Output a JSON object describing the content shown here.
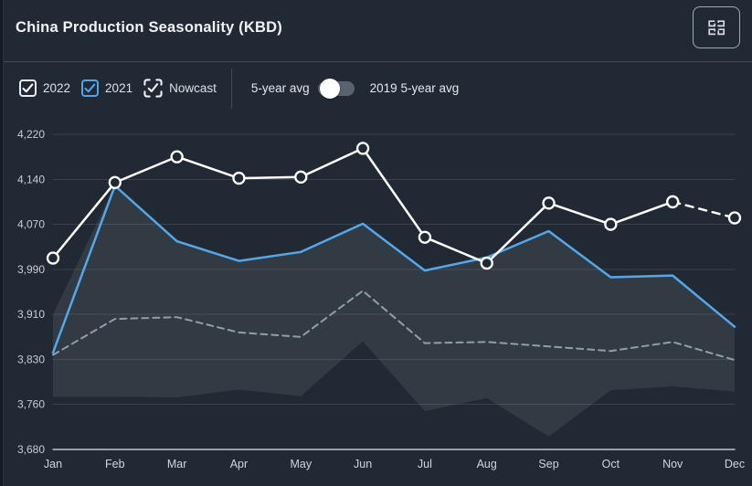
{
  "header": {
    "title": "China Production Seasonality (KBD)",
    "action_icon": "grid-icon"
  },
  "controls": {
    "legend": [
      {
        "label": "2022",
        "checked": true,
        "style": "white"
      },
      {
        "label": "2021",
        "checked": true,
        "style": "blue"
      },
      {
        "label": "Nowcast",
        "checked": true,
        "style": "bracket"
      }
    ],
    "toggle": {
      "left_label": "5-year avg",
      "right_label": "2019 5-year avg",
      "state": "off"
    }
  },
  "colors": {
    "panel": "#212a34",
    "accent_blue": "#55a7ea",
    "line_white": "#ffffff",
    "line_gray_dash": "#939da8",
    "band_fill": "rgba(255,255,255,0.08)",
    "grid_line": "rgba(255,255,255,0.11)",
    "axis_line": "#97a0aa",
    "tick_text": "#c6ccd4",
    "month_text": "#cfd5db"
  },
  "chart_data": {
    "type": "line",
    "title": "China Production Seasonality (KBD)",
    "xlabel": "",
    "ylabel": "",
    "categories": [
      "Jan",
      "Feb",
      "Mar",
      "Apr",
      "May",
      "Jun",
      "Jul",
      "Aug",
      "Sep",
      "Oct",
      "Nov",
      "Dec"
    ],
    "yticks": {
      "values": [
        4220,
        4140,
        4070,
        3990,
        3910,
        3830,
        3760,
        3680
      ],
      "labels": [
        "4,220",
        "4,140",
        "4,070",
        "3,990",
        "3,910",
        "3,830",
        "3,760",
        "3,680"
      ]
    },
    "ylim": [
      3680,
      4220
    ],
    "grid": true,
    "legend_position": "top",
    "series": [
      {
        "name": "2022",
        "color": "#ffffff",
        "dashed": false,
        "markers": true,
        "values": [
          4010,
          4135,
          4180,
          4142,
          4144,
          4195,
          4047,
          4001,
          4103,
          4070,
          4105,
          null
        ]
      },
      {
        "name": "Nowcast",
        "color": "#ffffff",
        "dashed": true,
        "markers": true,
        "values": [
          null,
          null,
          null,
          null,
          null,
          null,
          null,
          null,
          null,
          null,
          4105,
          4080
        ]
      },
      {
        "name": "2021",
        "color": "#55a7ea",
        "dashed": false,
        "markers": false,
        "values": [
          3842,
          4130,
          4040,
          4005,
          4021,
          4071,
          3988,
          4011,
          4058,
          3976,
          3979,
          3888
        ]
      },
      {
        "name": "2019 5-year avg",
        "color": "#939da8",
        "dashed": true,
        "markers": false,
        "values": [
          3838,
          3902,
          3905,
          3878,
          3870,
          3952,
          3859,
          3861,
          3853,
          3845,
          3861,
          3829
        ]
      }
    ],
    "band": {
      "name": "5-year range",
      "upper": [
        3910,
        4130,
        4040,
        4005,
        4021,
        4071,
        3988,
        4011,
        4058,
        3976,
        3979,
        3888
      ],
      "lower": [
        3772,
        3772,
        3771,
        3783,
        3773,
        3862,
        3748,
        3770,
        3703,
        3782,
        3788,
        3780
      ]
    }
  }
}
